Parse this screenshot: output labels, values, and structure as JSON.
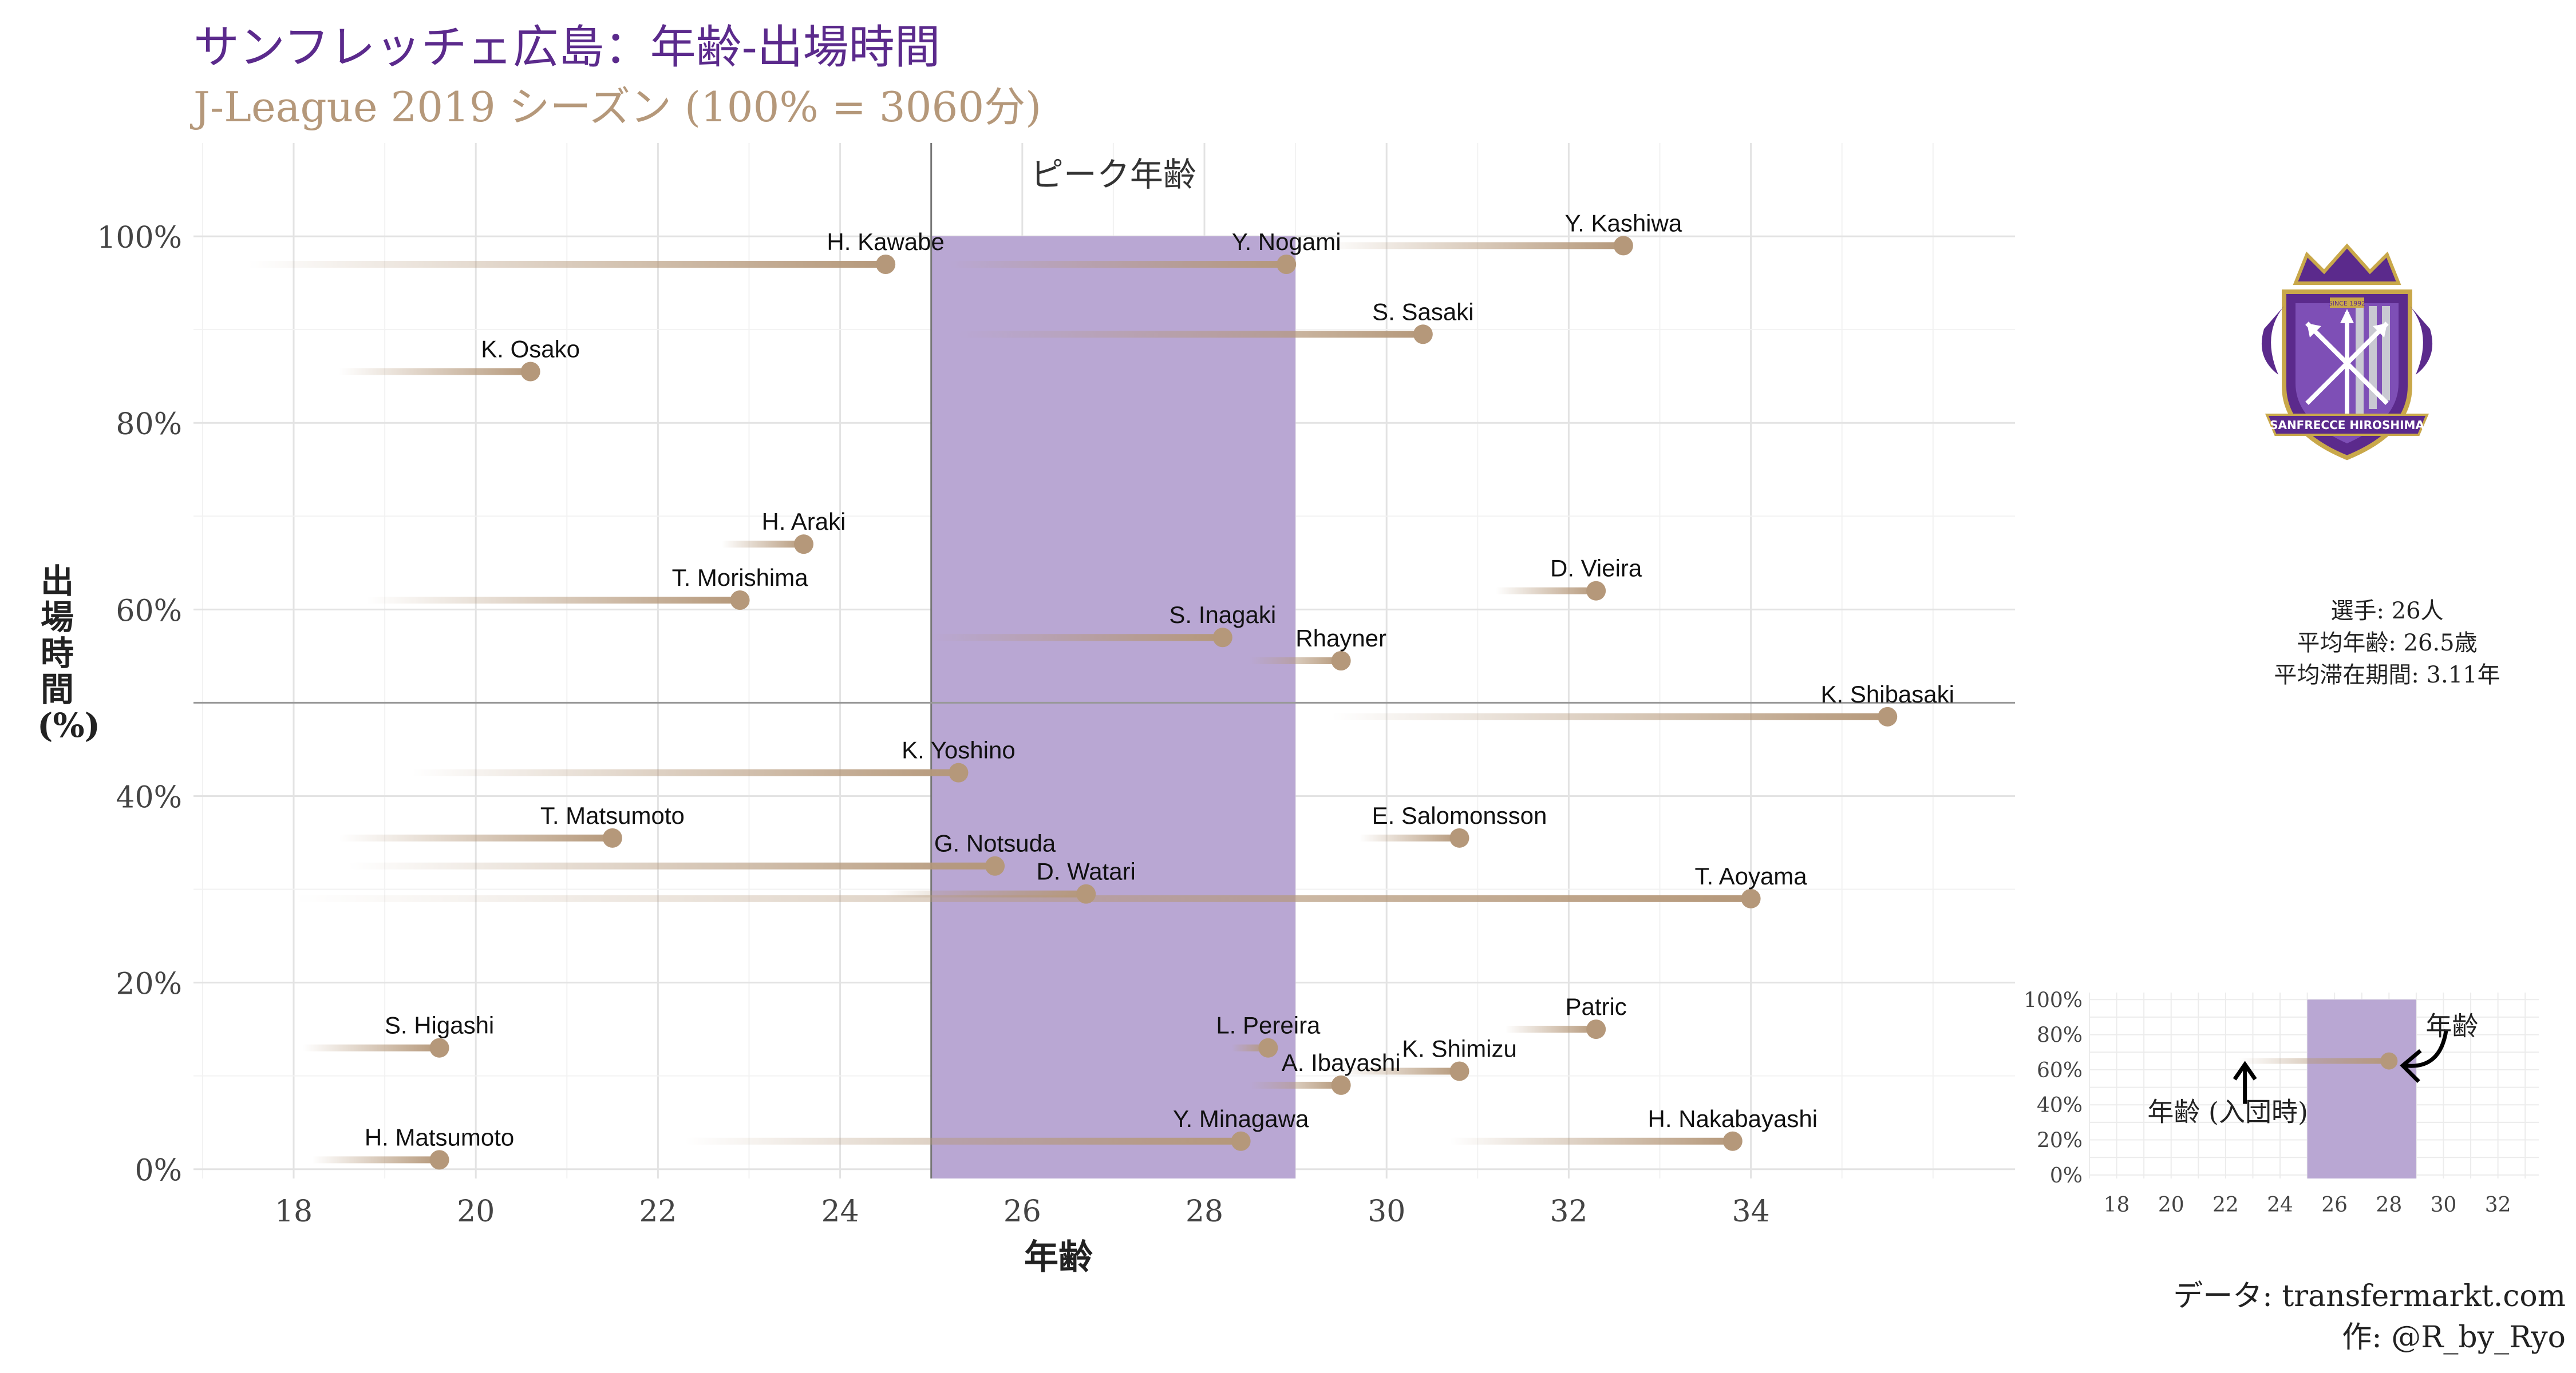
{
  "title": "サンフレッチェ広島：年齢-出場時間",
  "subtitle": "J-League 2019 シーズン (100% = 3060分)",
  "chart_data": {
    "type": "scatter",
    "xlabel": "年齢",
    "ylabel": "出場時間 (%)",
    "xlim": [
      16.9,
      36.9
    ],
    "ylim": [
      -1,
      110
    ],
    "x_ticks": [
      18,
      20,
      22,
      24,
      26,
      28,
      30,
      32,
      34
    ],
    "y_ticks": [
      0,
      20,
      40,
      60,
      80,
      100
    ],
    "y_tick_labels": [
      "0%",
      "20%",
      "40%",
      "60%",
      "80%",
      "100%"
    ],
    "reference_line_y": 50,
    "peak_band": {
      "x_start": 25,
      "x_end": 29,
      "label": "ピーク年齢"
    },
    "series": [
      {
        "name": "H. Kawabe",
        "age_joined": 17.5,
        "age": 24.5,
        "minutes_pct": 97
      },
      {
        "name": "Y. Nogami",
        "age_joined": 25.2,
        "age": 28.9,
        "minutes_pct": 97
      },
      {
        "name": "Y. Kashiwa",
        "age_joined": 29.3,
        "age": 32.6,
        "minutes_pct": 99
      },
      {
        "name": "S. Sasaki",
        "age_joined": 25.3,
        "age": 30.4,
        "minutes_pct": 89.5
      },
      {
        "name": "K. Osako",
        "age_joined": 18.5,
        "age": 20.6,
        "minutes_pct": 85.5
      },
      {
        "name": "H. Araki",
        "age_joined": 22.7,
        "age": 23.6,
        "minutes_pct": 67
      },
      {
        "name": "D. Vieira",
        "age_joined": 31.2,
        "age": 32.3,
        "minutes_pct": 62
      },
      {
        "name": "T. Morishima",
        "age_joined": 18.8,
        "age": 22.9,
        "minutes_pct": 61
      },
      {
        "name": "S. Inagaki",
        "age_joined": 25.0,
        "age": 28.2,
        "minutes_pct": 57
      },
      {
        "name": "Rhayner",
        "age_joined": 28.5,
        "age": 29.5,
        "minutes_pct": 54.5
      },
      {
        "name": "K. Shibasaki",
        "age_joined": 29.4,
        "age": 35.5,
        "minutes_pct": 48.5
      },
      {
        "name": "K. Yoshino",
        "age_joined": 19.3,
        "age": 25.3,
        "minutes_pct": 42.5
      },
      {
        "name": "T. Matsumoto",
        "age_joined": 18.5,
        "age": 21.5,
        "minutes_pct": 35.5
      },
      {
        "name": "E. Salomonsson",
        "age_joined": 29.7,
        "age": 30.8,
        "minutes_pct": 35.5
      },
      {
        "name": "G. Notsuda",
        "age_joined": 18.6,
        "age": 25.7,
        "minutes_pct": 32.5
      },
      {
        "name": "D. Watari",
        "age_joined": 24.5,
        "age": 26.7,
        "minutes_pct": 29.5
      },
      {
        "name": "T. Aoyama",
        "age_joined": 18.0,
        "age": 34.0,
        "minutes_pct": 29
      },
      {
        "name": "Patric",
        "age_joined": 31.3,
        "age": 32.3,
        "minutes_pct": 15
      },
      {
        "name": "S. Higashi",
        "age_joined": 18.1,
        "age": 19.6,
        "minutes_pct": 13
      },
      {
        "name": "L. Pereira",
        "age_joined": 28.3,
        "age": 28.7,
        "minutes_pct": 13
      },
      {
        "name": "K. Shimizu",
        "age_joined": 29.5,
        "age": 30.8,
        "minutes_pct": 10.5
      },
      {
        "name": "A. Ibayashi",
        "age_joined": 28.5,
        "age": 29.5,
        "minutes_pct": 9
      },
      {
        "name": "Y. Minagawa",
        "age_joined": 22.3,
        "age": 28.4,
        "minutes_pct": 3
      },
      {
        "name": "H. Nakabayashi",
        "age_joined": 30.7,
        "age": 33.8,
        "minutes_pct": 3
      },
      {
        "name": "H. Matsumoto",
        "age_joined": 18.2,
        "age": 19.6,
        "minutes_pct": 1
      }
    ],
    "legend_inset": {
      "x_ticks": [
        18,
        20,
        22,
        24,
        26,
        28,
        30,
        32
      ],
      "y_tick_labels": [
        "0%",
        "20%",
        "40%",
        "60%",
        "80%",
        "100%"
      ],
      "band": [
        25,
        29
      ],
      "example_age_joined": 22.5,
      "example_age": 28,
      "example_pct": 65,
      "label_age": "年齢",
      "label_joined": "年齢 (入団時)"
    }
  },
  "stats": {
    "players": "選手: 26人",
    "avg_age": "平均年齢: 26.5歳",
    "avg_tenure": "平均滞在期間: 3.11年"
  },
  "caption": {
    "source": "データ: transfermarkt.com",
    "author": "作: @R_by_Ryo"
  },
  "logo": {
    "text_top": "SINCE 1992",
    "text_banner": "SANFRECCE HIROSHIMA"
  },
  "colors": {
    "title": "#5b2a8c",
    "subtitle": "#b5987a",
    "band": "#b9a7d3",
    "point": "#b5987a"
  }
}
